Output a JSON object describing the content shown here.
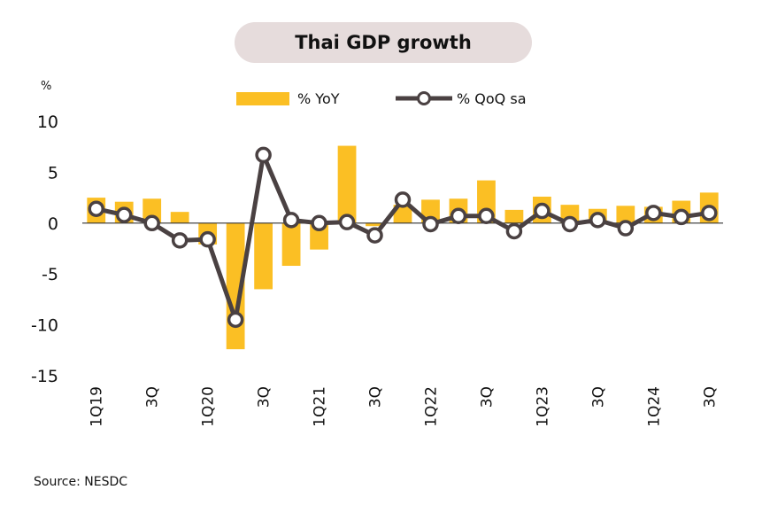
{
  "chart_data": {
    "type": "bar",
    "title": "Thai GDP growth",
    "ylabel": "%",
    "ylim": [
      -15,
      10
    ],
    "yticks": [
      10,
      5,
      0,
      -5,
      -10,
      -15
    ],
    "categories": [
      "1Q19",
      "2Q19",
      "3Q19",
      "4Q19",
      "1Q20",
      "2Q20",
      "3Q20",
      "4Q20",
      "1Q21",
      "2Q21",
      "3Q21",
      "4Q21",
      "1Q22",
      "2Q22",
      "3Q22",
      "4Q22",
      "1Q23",
      "2Q23",
      "3Q23",
      "4Q23",
      "1Q24",
      "2Q24",
      "3Q24"
    ],
    "tick_labels": [
      {
        "index": 0,
        "label": "1Q19"
      },
      {
        "index": 2,
        "label": "3Q"
      },
      {
        "index": 4,
        "label": "1Q20"
      },
      {
        "index": 6,
        "label": "3Q"
      },
      {
        "index": 8,
        "label": "1Q21"
      },
      {
        "index": 10,
        "label": "3Q"
      },
      {
        "index": 12,
        "label": "1Q22"
      },
      {
        "index": 14,
        "label": "3Q"
      },
      {
        "index": 16,
        "label": "1Q23"
      },
      {
        "index": 18,
        "label": "3Q"
      },
      {
        "index": 20,
        "label": "1Q24"
      },
      {
        "index": 22,
        "label": "3Q"
      }
    ],
    "series": [
      {
        "name": "%  YoY",
        "kind": "bar",
        "color": "#fbbf24",
        "values": [
          2.5,
          2.1,
          2.4,
          1.1,
          -2.1,
          -12.4,
          -6.5,
          -4.2,
          -2.6,
          7.6,
          -0.3,
          1.8,
          2.3,
          2.4,
          4.2,
          1.3,
          2.6,
          1.8,
          1.4,
          1.7,
          1.6,
          2.2,
          3.0
        ]
      },
      {
        "name": "% QoQ sa",
        "kind": "line",
        "color": "#4a4142",
        "values": [
          1.4,
          0.8,
          0.0,
          -1.7,
          -1.6,
          -9.5,
          6.7,
          0.3,
          0.0,
          0.1,
          -1.2,
          2.3,
          -0.1,
          0.7,
          0.7,
          -0.8,
          1.2,
          -0.1,
          0.3,
          -0.5,
          1.0,
          0.6,
          1.0
        ]
      }
    ],
    "legend": "top",
    "grid": false
  },
  "source": "Source: NESDC"
}
